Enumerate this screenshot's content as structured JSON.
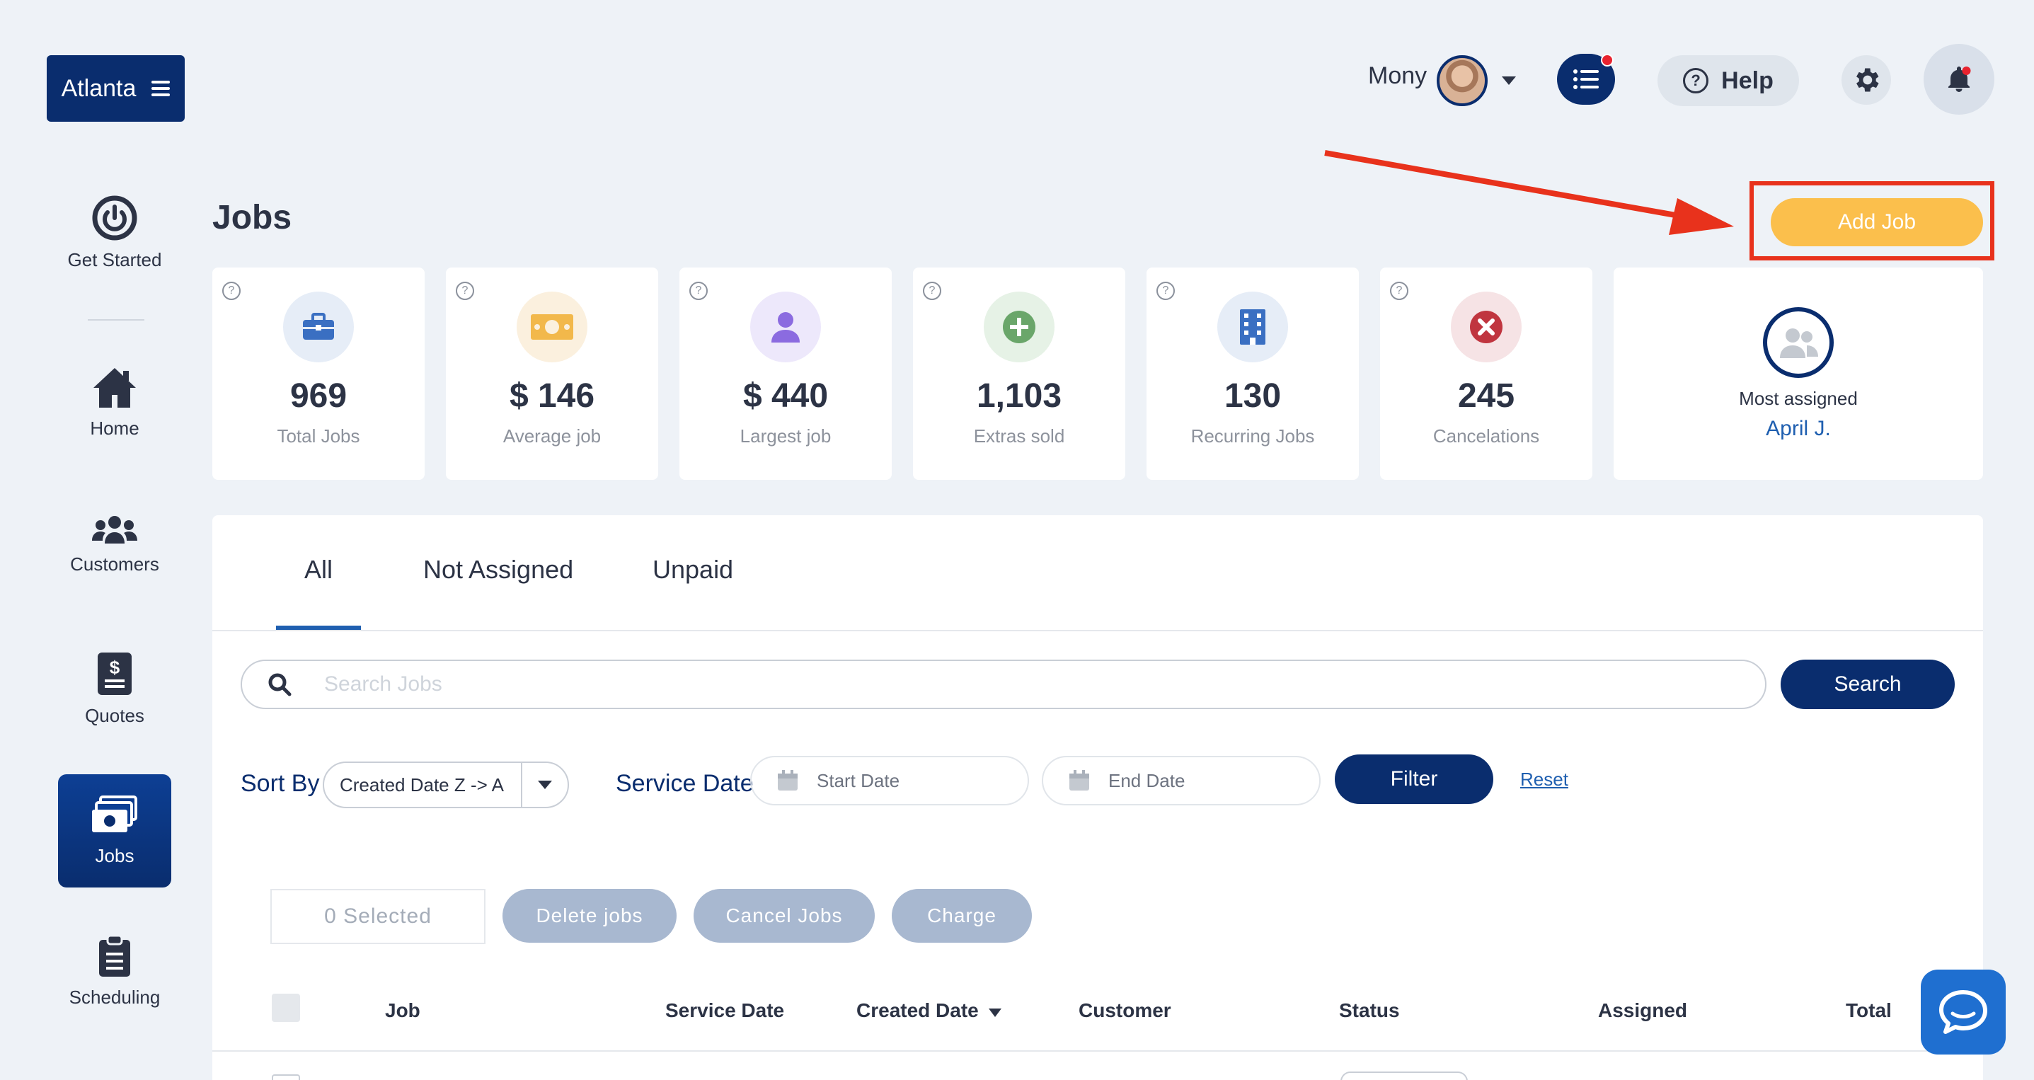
{
  "brand": {
    "city": "Atlanta"
  },
  "topbar": {
    "user_name": "Mony",
    "help_label": "Help"
  },
  "sidebar": {
    "items": [
      {
        "label": "Get Started",
        "icon": "power-icon"
      },
      {
        "label": "Home",
        "icon": "home-icon"
      },
      {
        "label": "Customers",
        "icon": "users-icon"
      },
      {
        "label": "Quotes",
        "icon": "quote-icon"
      },
      {
        "label": "Jobs",
        "icon": "money-icon",
        "active": true
      },
      {
        "label": "Scheduling",
        "icon": "clipboard-icon"
      }
    ]
  },
  "page": {
    "title": "Jobs",
    "add_job_label": "Add Job"
  },
  "stats": [
    {
      "value": "969",
      "label": "Total Jobs",
      "icon": "briefcase-icon",
      "color": "#3a6fc2",
      "bg": "#e6edf7"
    },
    {
      "value": "$ 146",
      "label": "Average job",
      "icon": "cash-icon",
      "color": "#f2b84b",
      "bg": "#fbf0de"
    },
    {
      "value": "$ 440",
      "label": "Largest job",
      "icon": "person-icon",
      "color": "#8b6be0",
      "bg": "#ede8fb"
    },
    {
      "value": "1,103",
      "label": "Extras sold",
      "icon": "plus-circle-icon",
      "color": "#6aa66a",
      "bg": "#e6f2e6"
    },
    {
      "value": "130",
      "label": "Recurring Jobs",
      "icon": "building-icon",
      "color": "#3a6fc2",
      "bg": "#e6edf7"
    },
    {
      "value": "245",
      "label": "Cancelations",
      "icon": "x-circle-icon",
      "color": "#c0353f",
      "bg": "#f6e3e5"
    }
  ],
  "most_assigned": {
    "title": "Most assigned",
    "name": "April J."
  },
  "tabs": [
    {
      "label": "All",
      "active": true
    },
    {
      "label": "Not Assigned"
    },
    {
      "label": "Unpaid"
    }
  ],
  "search": {
    "placeholder": "Search Jobs",
    "button_label": "Search"
  },
  "filters": {
    "sort_label": "Sort By",
    "sort_value": "Created Date Z -> A",
    "service_date_label": "Service Date",
    "start_placeholder": "Start Date",
    "end_placeholder": "End Date",
    "filter_label": "Filter",
    "reset_label": "Reset"
  },
  "bulk": {
    "selected": "0 Selected",
    "delete": "Delete jobs",
    "cancel": "Cancel Jobs",
    "charge": "Charge"
  },
  "table": {
    "columns": [
      "Job",
      "Service Date",
      "Created Date",
      "Customer",
      "Status",
      "Assigned",
      "Total"
    ]
  },
  "colors": {
    "brand": "#0a2d6e",
    "accent": "#fbbf4c",
    "highlight": "#e8321c",
    "link": "#1f5fb0"
  }
}
